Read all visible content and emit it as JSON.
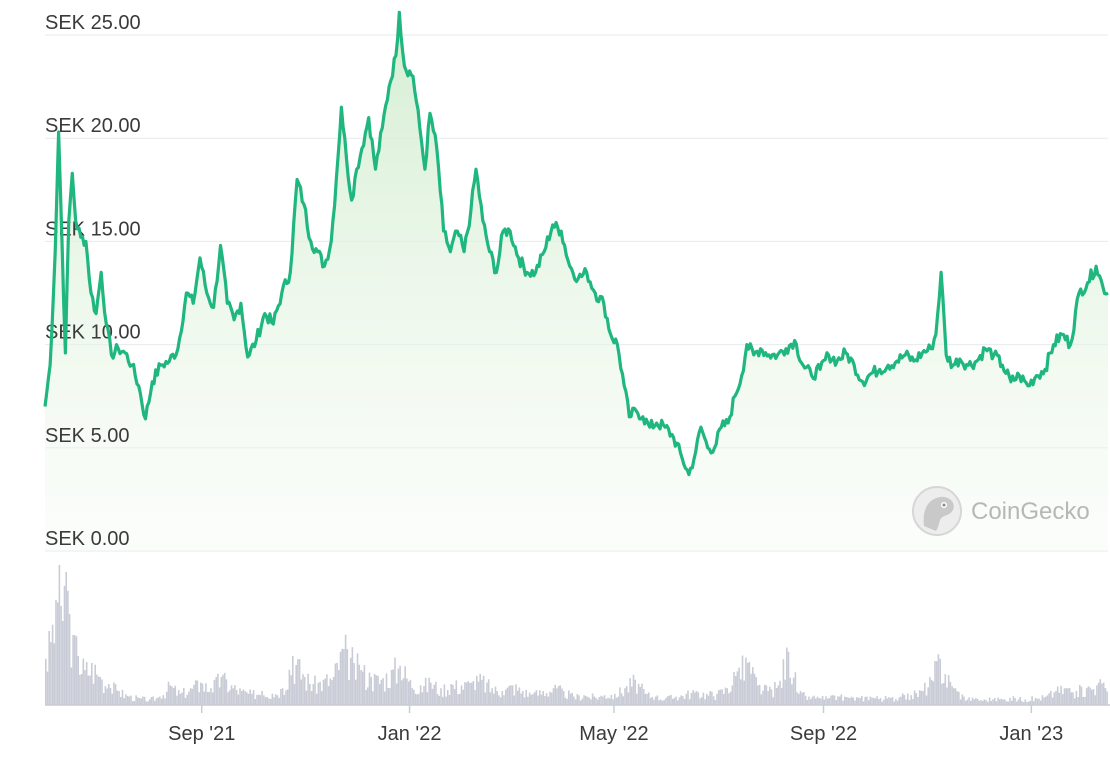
{
  "chart_data": {
    "type": "area",
    "currency_prefix": "SEK",
    "y_ticks": [
      "SEK 25.00",
      "SEK 20.00",
      "SEK 15.00",
      "SEK 10.00",
      "SEK 5.00",
      "SEK 0.00"
    ],
    "ylim": [
      0,
      25
    ],
    "x_ticks": [
      "Sep '21",
      "Jan '22",
      "May '22",
      "Sep '22",
      "Jan '23"
    ],
    "x_range": [
      "2021-06-01",
      "2023-02-15"
    ],
    "grid": true,
    "line_color": "#1fb67f",
    "fill_color": "#e3f3e1",
    "volume_color": "#c9ccd6",
    "price_series": {
      "name": "Price",
      "points": [
        [
          "2021-06-01",
          7.0
        ],
        [
          "2021-06-04",
          9.0
        ],
        [
          "2021-06-07",
          14.5
        ],
        [
          "2021-06-09",
          20.3
        ],
        [
          "2021-06-11",
          15.0
        ],
        [
          "2021-06-13",
          9.6
        ],
        [
          "2021-06-15",
          16.0
        ],
        [
          "2021-06-17",
          18.3
        ],
        [
          "2021-06-19",
          16.0
        ],
        [
          "2021-06-22",
          15.2
        ],
        [
          "2021-06-25",
          15.0
        ],
        [
          "2021-06-28",
          12.5
        ],
        [
          "2021-07-01",
          11.5
        ],
        [
          "2021-07-04",
          13.5
        ],
        [
          "2021-07-07",
          11.0
        ],
        [
          "2021-07-10",
          9.5
        ],
        [
          "2021-07-14",
          9.8
        ],
        [
          "2021-07-18",
          9.6
        ],
        [
          "2021-07-22",
          9.0
        ],
        [
          "2021-07-26",
          8.0
        ],
        [
          "2021-07-30",
          6.4
        ],
        [
          "2021-08-03",
          8.2
        ],
        [
          "2021-08-08",
          9.0
        ],
        [
          "2021-08-13",
          9.2
        ],
        [
          "2021-08-18",
          9.8
        ],
        [
          "2021-08-23",
          12.5
        ],
        [
          "2021-08-27",
          12.0
        ],
        [
          "2021-08-31",
          14.2
        ],
        [
          "2021-09-04",
          12.5
        ],
        [
          "2021-09-08",
          11.8
        ],
        [
          "2021-09-12",
          14.8
        ],
        [
          "2021-09-16",
          12.0
        ],
        [
          "2021-09-20",
          11.2
        ],
        [
          "2021-09-24",
          12.0
        ],
        [
          "2021-09-28",
          9.4
        ],
        [
          "2021-10-03",
          10.2
        ],
        [
          "2021-10-08",
          11.5
        ],
        [
          "2021-10-13",
          11.0
        ],
        [
          "2021-10-18",
          12.5
        ],
        [
          "2021-10-23",
          13.5
        ],
        [
          "2021-10-27",
          18.0
        ],
        [
          "2021-10-31",
          16.8
        ],
        [
          "2021-11-04",
          15.0
        ],
        [
          "2021-11-08",
          14.5
        ],
        [
          "2021-11-12",
          13.8
        ],
        [
          "2021-11-16",
          15.0
        ],
        [
          "2021-11-19",
          18.0
        ],
        [
          "2021-11-22",
          21.5
        ],
        [
          "2021-11-25",
          19.0
        ],
        [
          "2021-11-28",
          17.0
        ],
        [
          "2021-12-01",
          18.5
        ],
        [
          "2021-12-04",
          19.5
        ],
        [
          "2021-12-08",
          21.0
        ],
        [
          "2021-12-12",
          18.5
        ],
        [
          "2021-12-16",
          20.5
        ],
        [
          "2021-12-20",
          22.5
        ],
        [
          "2021-12-24",
          24.0
        ],
        [
          "2021-12-26",
          26.1
        ],
        [
          "2021-12-29",
          23.5
        ],
        [
          "2022-01-03",
          23.0
        ],
        [
          "2022-01-07",
          20.5
        ],
        [
          "2022-01-10",
          18.5
        ],
        [
          "2022-01-13",
          21.2
        ],
        [
          "2022-01-17",
          19.5
        ],
        [
          "2022-01-21",
          15.5
        ],
        [
          "2022-01-25",
          14.5
        ],
        [
          "2022-01-29",
          15.5
        ],
        [
          "2022-02-02",
          14.5
        ],
        [
          "2022-02-06",
          16.5
        ],
        [
          "2022-02-09",
          18.5
        ],
        [
          "2022-02-13",
          16.0
        ],
        [
          "2022-02-17",
          14.5
        ],
        [
          "2022-02-21",
          13.5
        ],
        [
          "2022-02-25",
          15.5
        ],
        [
          "2022-03-01",
          15.5
        ],
        [
          "2022-03-06",
          14.2
        ],
        [
          "2022-03-11",
          13.5
        ],
        [
          "2022-03-16",
          13.5
        ],
        [
          "2022-03-21",
          14.5
        ],
        [
          "2022-03-26",
          15.8
        ],
        [
          "2022-03-31",
          15.5
        ],
        [
          "2022-04-05",
          13.8
        ],
        [
          "2022-04-10",
          13.2
        ],
        [
          "2022-04-15",
          13.5
        ],
        [
          "2022-04-20",
          12.5
        ],
        [
          "2022-04-25",
          12.0
        ],
        [
          "2022-04-29",
          10.5
        ],
        [
          "2022-05-03",
          10.0
        ],
        [
          "2022-05-07",
          8.0
        ],
        [
          "2022-05-10",
          6.5
        ],
        [
          "2022-05-14",
          6.8
        ],
        [
          "2022-05-18",
          6.5
        ],
        [
          "2022-05-22",
          6.0
        ],
        [
          "2022-05-26",
          6.2
        ],
        [
          "2022-05-31",
          6.0
        ],
        [
          "2022-06-05",
          5.5
        ],
        [
          "2022-06-10",
          4.5
        ],
        [
          "2022-06-14",
          3.7
        ],
        [
          "2022-06-18",
          4.8
        ],
        [
          "2022-06-21",
          6.0
        ],
        [
          "2022-06-25",
          5.0
        ],
        [
          "2022-06-29",
          5.0
        ],
        [
          "2022-07-03",
          6.0
        ],
        [
          "2022-07-07",
          6.2
        ],
        [
          "2022-07-11",
          7.5
        ],
        [
          "2022-07-15",
          8.5
        ],
        [
          "2022-07-18",
          10.0
        ],
        [
          "2022-07-22",
          9.5
        ],
        [
          "2022-07-26",
          9.8
        ],
        [
          "2022-07-31",
          9.5
        ],
        [
          "2022-08-05",
          9.5
        ],
        [
          "2022-08-10",
          9.8
        ],
        [
          "2022-08-15",
          10.2
        ],
        [
          "2022-08-20",
          9.0
        ],
        [
          "2022-08-25",
          8.5
        ],
        [
          "2022-08-30",
          8.8
        ],
        [
          "2022-09-04",
          9.5
        ],
        [
          "2022-09-09",
          9.2
        ],
        [
          "2022-09-14",
          9.6
        ],
        [
          "2022-09-19",
          9.0
        ],
        [
          "2022-09-24",
          8.2
        ],
        [
          "2022-09-29",
          8.6
        ],
        [
          "2022-10-04",
          8.8
        ],
        [
          "2022-10-09",
          9.0
        ],
        [
          "2022-10-14",
          9.2
        ],
        [
          "2022-10-19",
          9.5
        ],
        [
          "2022-10-24",
          9.2
        ],
        [
          "2022-10-29",
          9.6
        ],
        [
          "2022-11-03",
          9.8
        ],
        [
          "2022-11-06",
          10.5
        ],
        [
          "2022-11-09",
          13.5
        ],
        [
          "2022-11-12",
          9.5
        ],
        [
          "2022-11-16",
          9.0
        ],
        [
          "2022-11-20",
          9.3
        ],
        [
          "2022-11-25",
          9.0
        ],
        [
          "2022-11-30",
          9.2
        ],
        [
          "2022-12-05",
          9.8
        ],
        [
          "2022-12-10",
          9.5
        ],
        [
          "2022-12-15",
          9.0
        ],
        [
          "2022-12-20",
          8.2
        ],
        [
          "2022-12-25",
          8.5
        ],
        [
          "2022-12-30",
          8.0
        ],
        [
          "2023-01-04",
          8.5
        ],
        [
          "2023-01-09",
          8.8
        ],
        [
          "2023-01-14",
          10.0
        ],
        [
          "2023-01-19",
          10.5
        ],
        [
          "2023-01-24",
          10.0
        ],
        [
          "2023-01-29",
          12.5
        ],
        [
          "2023-02-03",
          13.0
        ],
        [
          "2023-02-08",
          13.8
        ],
        [
          "2023-02-12",
          12.8
        ],
        [
          "2023-02-15",
          12.5
        ]
      ]
    },
    "volume_series": {
      "name": "Volume",
      "ylim": [
        0,
        1
      ],
      "points": [
        [
          "2021-06-01",
          0.33
        ],
        [
          "2021-06-04",
          0.45
        ],
        [
          "2021-06-07",
          0.75
        ],
        [
          "2021-06-09",
          1.0
        ],
        [
          "2021-06-11",
          0.6
        ],
        [
          "2021-06-13",
          0.95
        ],
        [
          "2021-06-15",
          0.65
        ],
        [
          "2021-06-17",
          0.5
        ],
        [
          "2021-06-20",
          0.35
        ],
        [
          "2021-06-24",
          0.25
        ],
        [
          "2021-06-28",
          0.3
        ],
        [
          "2021-07-03",
          0.2
        ],
        [
          "2021-07-08",
          0.15
        ],
        [
          "2021-07-14",
          0.1
        ],
        [
          "2021-07-20",
          0.06
        ],
        [
          "2021-07-26",
          0.05
        ],
        [
          "2021-08-01",
          0.04
        ],
        [
          "2021-08-07",
          0.06
        ],
        [
          "2021-08-13",
          0.14
        ],
        [
          "2021-08-19",
          0.08
        ],
        [
          "2021-08-25",
          0.12
        ],
        [
          "2021-08-31",
          0.16
        ],
        [
          "2021-09-06",
          0.12
        ],
        [
          "2021-09-12",
          0.2
        ],
        [
          "2021-09-18",
          0.14
        ],
        [
          "2021-09-24",
          0.1
        ],
        [
          "2021-09-30",
          0.08
        ],
        [
          "2021-10-06",
          0.1
        ],
        [
          "2021-10-12",
          0.08
        ],
        [
          "2021-10-18",
          0.12
        ],
        [
          "2021-10-24",
          0.35
        ],
        [
          "2021-10-30",
          0.22
        ],
        [
          "2021-11-05",
          0.15
        ],
        [
          "2021-11-11",
          0.18
        ],
        [
          "2021-11-17",
          0.2
        ],
        [
          "2021-11-21",
          0.38
        ],
        [
          "2021-11-25",
          0.4
        ],
        [
          "2021-11-29",
          0.3
        ],
        [
          "2021-12-03",
          0.25
        ],
        [
          "2021-12-09",
          0.2
        ],
        [
          "2021-12-15",
          0.18
        ],
        [
          "2021-12-21",
          0.25
        ],
        [
          "2021-12-26",
          0.28
        ],
        [
          "2022-01-01",
          0.18
        ],
        [
          "2022-01-07",
          0.14
        ],
        [
          "2022-01-13",
          0.16
        ],
        [
          "2022-01-19",
          0.12
        ],
        [
          "2022-01-25",
          0.15
        ],
        [
          "2022-01-31",
          0.14
        ],
        [
          "2022-02-06",
          0.16
        ],
        [
          "2022-02-12",
          0.18
        ],
        [
          "2022-02-18",
          0.12
        ],
        [
          "2022-02-24",
          0.1
        ],
        [
          "2022-03-02",
          0.14
        ],
        [
          "2022-03-08",
          0.1
        ],
        [
          "2022-03-14",
          0.08
        ],
        [
          "2022-03-20",
          0.1
        ],
        [
          "2022-03-26",
          0.12
        ],
        [
          "2022-04-01",
          0.1
        ],
        [
          "2022-04-07",
          0.06
        ],
        [
          "2022-04-13",
          0.07
        ],
        [
          "2022-04-19",
          0.06
        ],
        [
          "2022-04-25",
          0.07
        ],
        [
          "2022-05-01",
          0.08
        ],
        [
          "2022-05-07",
          0.12
        ],
        [
          "2022-05-13",
          0.18
        ],
        [
          "2022-05-19",
          0.08
        ],
        [
          "2022-05-25",
          0.06
        ],
        [
          "2022-05-31",
          0.05
        ],
        [
          "2022-06-06",
          0.06
        ],
        [
          "2022-06-12",
          0.08
        ],
        [
          "2022-06-18",
          0.1
        ],
        [
          "2022-06-24",
          0.08
        ],
        [
          "2022-06-30",
          0.08
        ],
        [
          "2022-07-06",
          0.12
        ],
        [
          "2022-07-12",
          0.24
        ],
        [
          "2022-07-18",
          0.3
        ],
        [
          "2022-07-24",
          0.14
        ],
        [
          "2022-07-30",
          0.1
        ],
        [
          "2022-08-05",
          0.14
        ],
        [
          "2022-08-11",
          0.38
        ],
        [
          "2022-08-17",
          0.08
        ],
        [
          "2022-08-23",
          0.06
        ],
        [
          "2022-08-29",
          0.05
        ],
        [
          "2022-09-04",
          0.05
        ],
        [
          "2022-09-10",
          0.06
        ],
        [
          "2022-09-16",
          0.05
        ],
        [
          "2022-09-22",
          0.05
        ],
        [
          "2022-09-28",
          0.06
        ],
        [
          "2022-10-04",
          0.05
        ],
        [
          "2022-10-10",
          0.05
        ],
        [
          "2022-10-16",
          0.06
        ],
        [
          "2022-10-22",
          0.07
        ],
        [
          "2022-10-28",
          0.1
        ],
        [
          "2022-11-03",
          0.18
        ],
        [
          "2022-11-08",
          0.33
        ],
        [
          "2022-11-11",
          0.22
        ],
        [
          "2022-11-16",
          0.12
        ],
        [
          "2022-11-22",
          0.06
        ],
        [
          "2022-11-28",
          0.04
        ],
        [
          "2022-12-04",
          0.04
        ],
        [
          "2022-12-10",
          0.05
        ],
        [
          "2022-12-16",
          0.04
        ],
        [
          "2022-12-22",
          0.05
        ],
        [
          "2022-12-28",
          0.04
        ],
        [
          "2023-01-03",
          0.05
        ],
        [
          "2023-01-09",
          0.06
        ],
        [
          "2023-01-15",
          0.1
        ],
        [
          "2023-01-21",
          0.12
        ],
        [
          "2023-01-27",
          0.1
        ],
        [
          "2023-02-02",
          0.12
        ],
        [
          "2023-02-08",
          0.14
        ],
        [
          "2023-02-12",
          0.16
        ],
        [
          "2023-02-15",
          0.12
        ]
      ]
    }
  },
  "watermark": {
    "brand": "CoinGecko",
    "icon": "gecko-logo-icon"
  }
}
